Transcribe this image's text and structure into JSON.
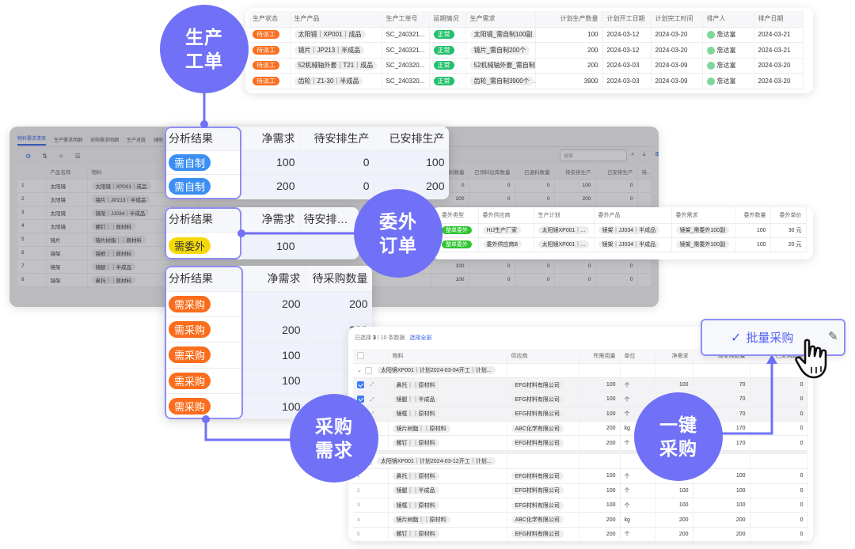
{
  "colors": {
    "accent": "#7171f7",
    "status_pending": "#fa6d1c",
    "status_normal": "#22c06b",
    "make": "#3b8ff2",
    "outsource": "#f5d90a",
    "purchase": "#fa6d1c",
    "link": "#3366ee"
  },
  "callouts": {
    "production": [
      "生产",
      "工单"
    ],
    "outsource": [
      "委外",
      "订单"
    ],
    "purchase_demand": [
      "采购",
      "需求"
    ],
    "one_click": [
      "一键",
      "采购"
    ]
  },
  "production_orders": {
    "columns": [
      "生产状态",
      "生产产品",
      "生产工单号",
      "延期情况",
      "生产需求",
      "计划生产数量",
      "计划开工日期",
      "计划完工时间",
      "排产人",
      "排产日期"
    ],
    "rows": [
      [
        "待派工",
        "太阳镜｜XP001｜成品",
        "SC_240321...",
        "正常",
        "太阳镜_需自制100副",
        "100",
        "2024-03-12",
        "2024-03-20",
        "詹达富",
        "2024-03-21"
      ],
      [
        "待派工",
        "镜片｜JP213｜半成品",
        "SC_240321...",
        "正常",
        "镜片_需自制200个",
        "200",
        "2024-03-12",
        "2024-03-20",
        "詹达富",
        "2024-03-21"
      ],
      [
        "待派工",
        "52机械轴外套｜T21｜成品",
        "SC_240320...",
        "正常",
        "52机械轴外套_需自制200件",
        "200",
        "2024-03-03",
        "2024-03-09",
        "詹达富",
        "2024-03-20"
      ],
      [
        "待派工",
        "齿轮｜Z1-30｜半成品",
        "SC_240320...",
        "正常",
        "齿轮_需自制3900个",
        "3900",
        "2024-03-03",
        "2024-03-09",
        "詹达富",
        "2024-03-20"
      ]
    ]
  },
  "mrp": {
    "tabs": [
      "物料需求清单",
      "生产需求明细",
      "采购需求明细",
      "生产进度",
      "辅助"
    ],
    "search_placeholder": "搜索",
    "columns": [
      "",
      "产品名称",
      "物料",
      "",
      "料数量",
      "已领料出库数量",
      "已退料数量",
      "待安排生产",
      "已安排生产",
      "待安"
    ],
    "rows": [
      [
        "1",
        "太阳镜",
        "太阳镜｜XP001｜成品",
        "",
        "0",
        "0",
        "0",
        "100",
        "0",
        ""
      ],
      [
        "2",
        "太阳镜",
        "镜片｜JP213｜半成品",
        "",
        "200",
        "0",
        "0",
        "200",
        "0",
        ""
      ],
      [
        "3",
        "太阳镜",
        "镜架｜JJ034｜半成品",
        "",
        "",
        "",
        "",
        "",
        "",
        ""
      ],
      [
        "4",
        "太阳镜",
        "螺钉｜｜原材料",
        "",
        "",
        "",
        "",
        "",
        "",
        ""
      ],
      [
        "5",
        "镜片",
        "镜片树脂｜｜原材料",
        "",
        "",
        "",
        "",
        "",
        "",
        ""
      ],
      [
        "6",
        "镜架",
        "镜框｜｜原材料",
        "",
        "",
        "",
        "",
        "",
        "",
        ""
      ],
      [
        "7",
        "镜架",
        "镜腿｜｜半成品",
        "",
        "100",
        "0",
        "0",
        "0",
        "0",
        ""
      ],
      [
        "8",
        "镜架",
        "鼻托｜｜原材料",
        "",
        "100",
        "0",
        "0",
        "0",
        "0",
        ""
      ]
    ]
  },
  "analysis_make": {
    "columns": [
      "分析结果",
      "净需求",
      "待安排生产",
      "已安排生产"
    ],
    "rows": [
      [
        "需自制",
        "100",
        "0",
        "100"
      ],
      [
        "需自制",
        "200",
        "0",
        "200"
      ]
    ]
  },
  "analysis_outsource": {
    "columns": [
      "分析结果",
      "净需求",
      "待安排委外"
    ],
    "rows": [
      [
        "需委外",
        "100",
        ""
      ]
    ]
  },
  "outsource_orders": {
    "columns": [
      "委外类型",
      "委外供应商",
      "生产计划",
      "委外产品",
      "委外需求",
      "委外数量",
      "委外单价"
    ],
    "rows": [
      [
        "整单委外",
        "HIJ生产厂家",
        "太阳镜XP001｜...",
        "镜架｜JJ034｜半成品",
        "镜架_需委外100副",
        "100",
        "30 元"
      ],
      [
        "整单委外",
        "委外供应商B",
        "太阳镜XP001｜...",
        "镜架｜JJ034｜半成品",
        "镜架_需委外100副",
        "100",
        "20 元"
      ]
    ]
  },
  "analysis_purchase": {
    "columns": [
      "分析结果",
      "净需求",
      "待采购数量"
    ],
    "rows": [
      [
        "需采购",
        "200",
        "200"
      ],
      [
        "需采购",
        "200",
        "200"
      ],
      [
        "需采购",
        "100",
        ""
      ],
      [
        "需采购",
        "100",
        ""
      ],
      [
        "需采购",
        "100",
        ""
      ]
    ]
  },
  "purchase_list": {
    "selection": {
      "prefix": "已选择",
      "count": "3",
      "suffix": "/ 10 条数据",
      "select_all": "选择全部"
    },
    "columns": [
      "",
      "物料",
      "供应商",
      "所需用量",
      "单位",
      "净需求",
      "待采购数量",
      "已采购数量"
    ],
    "groups": [
      {
        "label": "太阳镜XP001｜计划2024-03-04开工｜计划...",
        "rows": [
          {
            "selected": true,
            "index": "",
            "cells": [
              "鼻托｜｜原材料",
              "EFG材料有限公司",
              "100",
              "个",
              "100",
              "70",
              "0"
            ]
          },
          {
            "selected": true,
            "index": "",
            "cells": [
              "镜腿｜｜半成品",
              "EFG材料有限公司",
              "100",
              "个",
              "",
              "70",
              "0"
            ]
          },
          {
            "selected": true,
            "index": "",
            "cells": [
              "镜框｜｜原材料",
              "EFG材料有限公司",
              "100",
              "个",
              "",
              "70",
              "0"
            ]
          },
          {
            "selected": false,
            "index": "",
            "cells": [
              "镜片树脂｜｜原材料",
              "ABC化学有限公司",
              "200",
              "kg",
              "",
              "170",
              "0"
            ]
          },
          {
            "selected": false,
            "index": "",
            "cells": [
              "螺钉｜｜原材料",
              "EFG材料有限公司",
              "200",
              "个",
              "",
              "170",
              "0"
            ]
          }
        ]
      },
      {
        "label": "太阳镜XP001｜计划2024-03-12开工｜计划...",
        "rows": [
          {
            "selected": false,
            "index": "1",
            "cells": [
              "鼻托｜｜原材料",
              "EFG材料有限公司",
              "100",
              "个",
              "",
              "100",
              "0"
            ]
          },
          {
            "selected": false,
            "index": "2",
            "cells": [
              "镜腿｜｜半成品",
              "EFG材料有限公司",
              "100",
              "个",
              "100",
              "100",
              "0"
            ]
          },
          {
            "selected": false,
            "index": "3",
            "cells": [
              "镜框｜｜原材料",
              "EFG材料有限公司",
              "100",
              "个",
              "100",
              "100",
              "0"
            ]
          },
          {
            "selected": false,
            "index": "4",
            "cells": [
              "镜片树脂｜｜原材料",
              "ABC化学有限公司",
              "200",
              "kg",
              "200",
              "200",
              "0"
            ]
          },
          {
            "selected": false,
            "index": "5",
            "cells": [
              "螺钉｜｜原材料",
              "EFG材料有限公司",
              "200",
              "个",
              "200",
              "200",
              "0"
            ]
          }
        ]
      }
    ]
  },
  "batch_button": {
    "label": "批量采购"
  }
}
